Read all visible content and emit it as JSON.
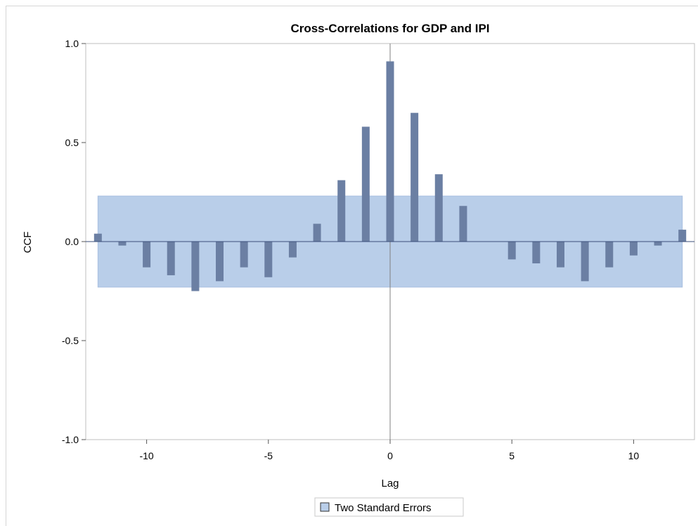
{
  "chart_data": {
    "type": "bar",
    "title": "Cross-Correlations for GDP and IPI",
    "xlabel": "Lag",
    "ylabel": "CCF",
    "xlim": [
      -12.5,
      12.5
    ],
    "ylim": [
      -1.0,
      1.0
    ],
    "xticks": [
      -10,
      -5,
      0,
      5,
      10
    ],
    "xtick_labels": [
      "-10",
      "-5",
      "0",
      "5",
      "10"
    ],
    "yticks": [
      1.0,
      0.5,
      0.0,
      -0.5,
      -1.0
    ],
    "ytick_labels": [
      "1.0",
      "0.5",
      "0.0",
      "-0.5",
      "-1.0"
    ],
    "x": [
      -12,
      -11,
      -10,
      -9,
      -8,
      -7,
      -6,
      -5,
      -4,
      -3,
      -2,
      -1,
      0,
      1,
      2,
      3,
      4,
      5,
      6,
      7,
      8,
      9,
      10,
      11,
      12
    ],
    "values": [
      0.04,
      -0.02,
      -0.13,
      -0.17,
      -0.25,
      -0.2,
      -0.13,
      -0.18,
      -0.08,
      0.09,
      0.31,
      0.58,
      0.91,
      0.65,
      0.34,
      0.18,
      0.0,
      -0.09,
      -0.11,
      -0.13,
      -0.2,
      -0.13,
      -0.07,
      -0.02,
      0.06
    ],
    "band": {
      "lower": -0.23,
      "upper": 0.23,
      "x_range": [
        -12,
        12
      ]
    },
    "grid": false,
    "legend": {
      "position": "bottom-center",
      "entries": [
        "Two Standard Errors"
      ]
    },
    "colors": {
      "bar": "#6b7fa3",
      "band": "#b9cee9",
      "band_edge": "#a9c0e0",
      "axis": "#808080",
      "zero_line": "#3a4e7a"
    }
  }
}
